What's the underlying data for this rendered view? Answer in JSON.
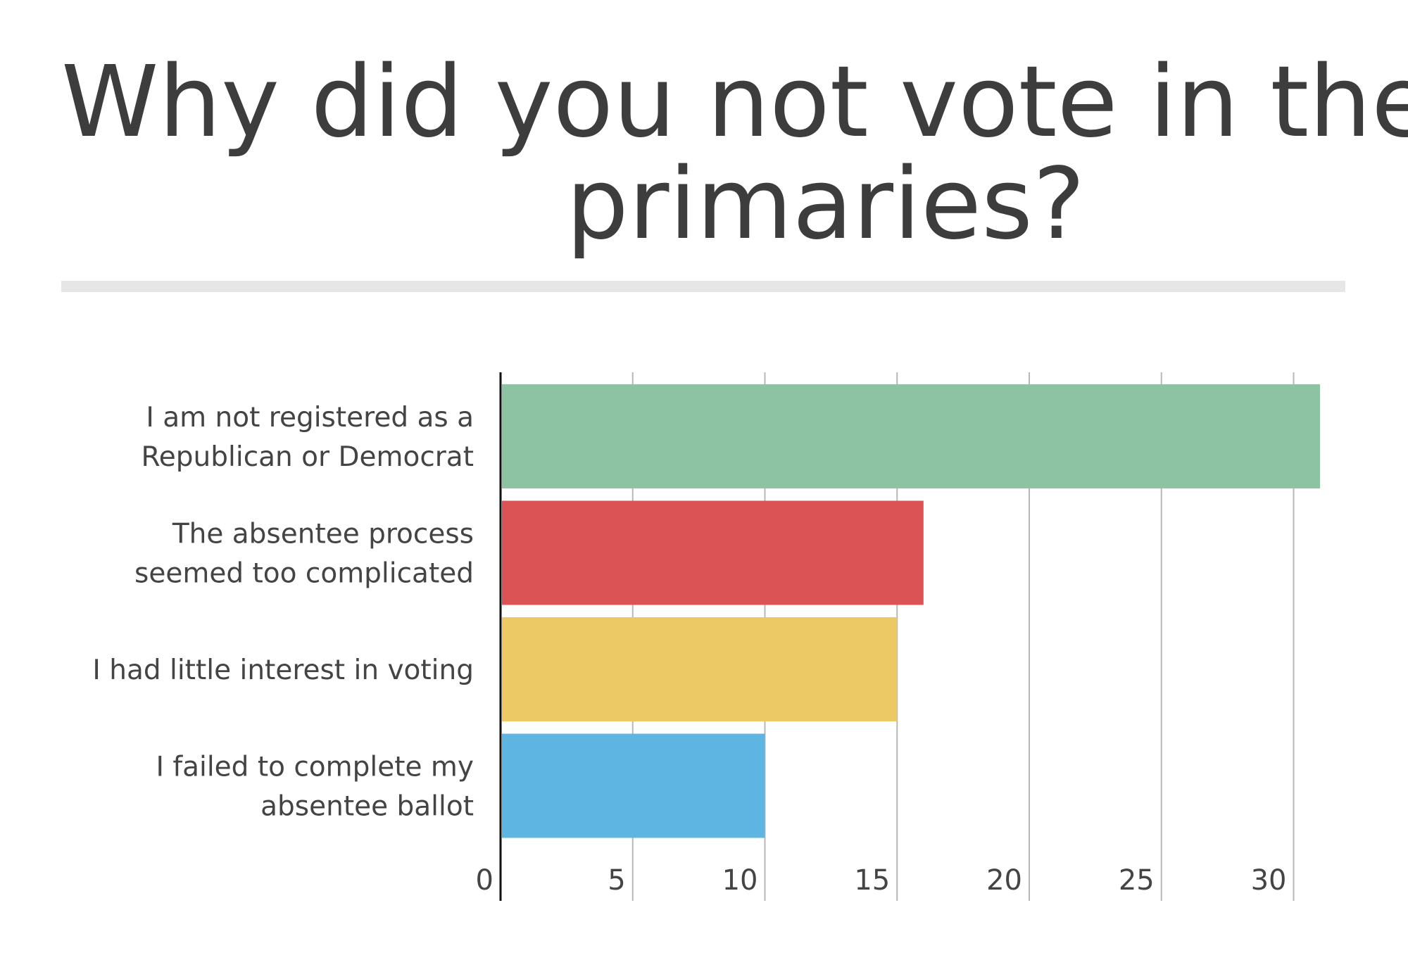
{
  "chart_data": {
    "type": "bar",
    "orientation": "horizontal",
    "title_lines": [
      "Why did you not vote in the",
      "primaries?"
    ],
    "categories": [
      [
        "I am not registered as a",
        "Republican or Democrat"
      ],
      [
        "The absentee process",
        "seemed too complicated"
      ],
      [
        "I had little interest in voting"
      ],
      [
        "I failed to complete my",
        "absentee ballot"
      ]
    ],
    "values": [
      31,
      16,
      15,
      10
    ],
    "colors": [
      "#8dc3a2",
      "#db5355",
      "#edc966",
      "#5eb5e2"
    ],
    "xlim": [
      0,
      31
    ],
    "xticks": [
      0,
      5,
      10,
      15,
      20,
      25,
      30
    ],
    "xlabel": "",
    "ylabel": "",
    "grid": true,
    "legend": "none"
  }
}
